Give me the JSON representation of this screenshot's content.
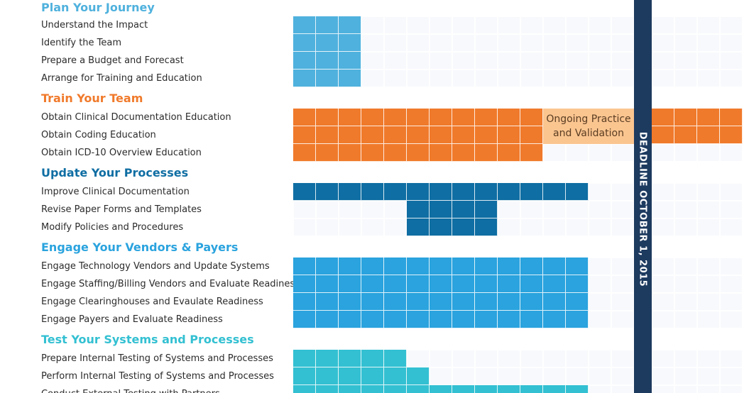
{
  "deadline_label": "DEADLINE OCTOBER 1, 2015",
  "callout_label": "Ongoing Practice\nand Validation",
  "grid_columns": 19,
  "deadline_after_column": 15,
  "phases": [
    {
      "title": "Plan Your Journey",
      "color": "#4fb1dd",
      "tasks": [
        {
          "label": "Understand the Impact",
          "start": 0,
          "end": 3
        },
        {
          "label": "Identify the Team",
          "start": 0,
          "end": 3
        },
        {
          "label": "Prepare a Budget and Forecast",
          "start": 0,
          "end": 3
        },
        {
          "label": "Arrange for Training and Education",
          "start": 0,
          "end": 3
        }
      ]
    },
    {
      "title": "Train Your Team",
      "color": "#f07a2b",
      "tasks": [
        {
          "label": "Obtain Clinical Documentation Education",
          "start": 0,
          "end": 19
        },
        {
          "label": "Obtain Coding Education",
          "start": 0,
          "end": 19
        },
        {
          "label": "Obtain ICD-10 Overview Education",
          "start": 0,
          "end": 11
        }
      ]
    },
    {
      "title": "Update Your Processes",
      "color": "#0f6ea3",
      "tasks": [
        {
          "label": "Improve Clinical Documentation",
          "start": 0,
          "end": 13
        },
        {
          "label": "Revise Paper Forms and Templates",
          "start": 5,
          "end": 9
        },
        {
          "label": "Modify Policies and Procedures",
          "start": 5,
          "end": 9
        }
      ]
    },
    {
      "title": "Engage Your Vendors & Payers",
      "color": "#2aa3de",
      "tasks": [
        {
          "label": "Engage Technology Vendors and Update Systems",
          "start": 0,
          "end": 13
        },
        {
          "label": "Engage Staffing/Billing Vendors and Evaluate Readiness",
          "start": 0,
          "end": 13
        },
        {
          "label": "Engage Clearinghouses and Evaulate Readiness",
          "start": 0,
          "end": 13
        },
        {
          "label": "Engage Payers and Evaluate Readiness",
          "start": 0,
          "end": 13
        }
      ]
    },
    {
      "title": "Test Your Systems and Processes",
      "color": "#33c0d2",
      "tasks": [
        {
          "label": "Prepare Internal Testing of Systems and Processes",
          "start": 0,
          "end": 5
        },
        {
          "label": "Perform Internal Testing of Systems and Processes",
          "start": 0,
          "end": 6
        },
        {
          "label": "Conduct External Testing with Partners",
          "start": 0,
          "end": 13
        }
      ]
    }
  ]
}
